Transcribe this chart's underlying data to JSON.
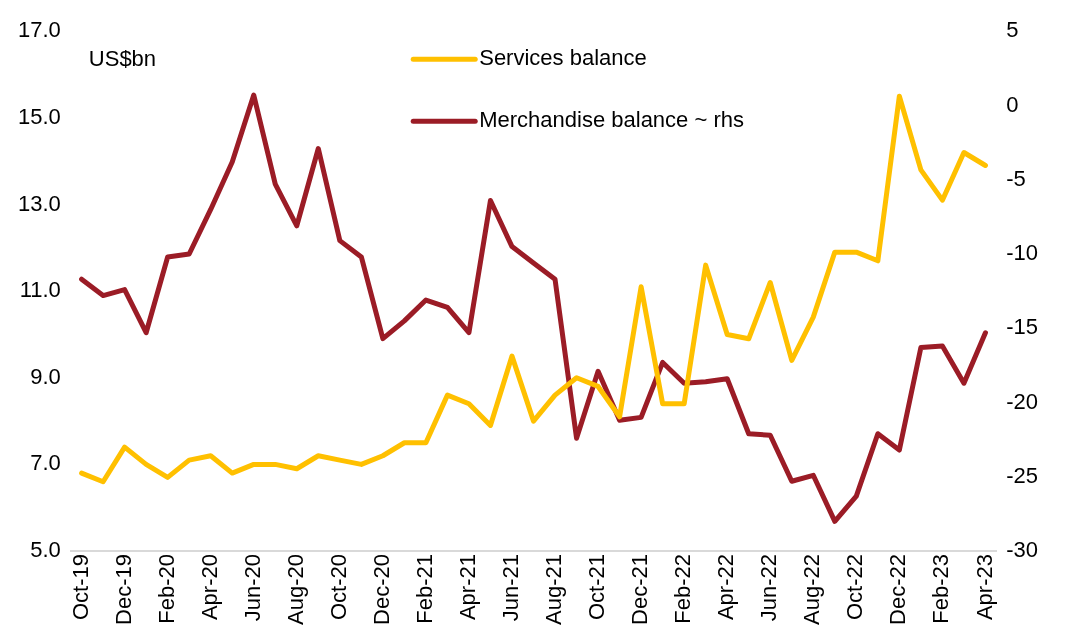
{
  "chart_data": {
    "type": "line",
    "categories": [
      "Oct-19",
      null,
      "Dec-19",
      null,
      "Feb-20",
      null,
      "Apr-20",
      null,
      "Jun-20",
      null,
      "Aug-20",
      null,
      "Oct-20",
      null,
      "Dec-20",
      null,
      "Feb-21",
      null,
      "Apr-21",
      null,
      "Jun-21",
      null,
      "Aug-21",
      null,
      "Oct-21",
      null,
      "Dec-21",
      null,
      "Feb-22",
      null,
      "Apr-22",
      null,
      "Jun-22",
      null,
      "Aug-22",
      null,
      "Oct-22",
      null,
      "Dec-22",
      null,
      "Feb-23",
      null,
      "Apr-23"
    ],
    "series": [
      {
        "name": "Services balance",
        "color": "#ffc000",
        "values": [
          6.8,
          6.6,
          7.4,
          7.0,
          6.7,
          7.1,
          7.2,
          6.8,
          7.0,
          7.0,
          6.9,
          7.2,
          7.1,
          7.0,
          7.2,
          7.5,
          7.5,
          8.6,
          8.4,
          7.9,
          9.5,
          8.0,
          8.6,
          9.0,
          8.8,
          8.1,
          11.1,
          8.4,
          8.4,
          11.6,
          10.0,
          9.9,
          11.2,
          9.4,
          10.4,
          11.9,
          11.9,
          11.7,
          15.5,
          13.8,
          13.1,
          14.2,
          13.9
        ]
      },
      {
        "name": "Merchandise balance ~ rhs",
        "color": "#9b1c26",
        "axis": "y2",
        "values": [
          -11.7,
          -12.8,
          -12.4,
          -15.3,
          -10.2,
          -10.0,
          -7.0,
          -3.8,
          0.7,
          -5.3,
          -8.1,
          -2.9,
          -9.1,
          -10.2,
          -15.7,
          -14.5,
          -13.1,
          -13.6,
          -15.3,
          -6.4,
          -9.5,
          -10.6,
          -11.7,
          -22.4,
          -17.9,
          -21.2,
          -21.0,
          -17.3,
          -18.7,
          -18.6,
          -18.4,
          -22.1,
          -22.2,
          -25.3,
          -24.9,
          -28.0,
          -26.3,
          -22.1,
          -23.2,
          -16.3,
          -16.2,
          -18.7,
          -15.3
        ]
      }
    ],
    "ylim": [
      5,
      17
    ],
    "yticks": [
      {
        "value": 5,
        "label": "5.0"
      },
      {
        "value": 7,
        "label": "7.0"
      },
      {
        "value": 9,
        "label": "9.0"
      },
      {
        "value": 11,
        "label": "11.0"
      },
      {
        "value": 13,
        "label": "13.0"
      },
      {
        "value": 15,
        "label": "15.0"
      },
      {
        "value": 17,
        "label": "17.0"
      }
    ],
    "y2lim": [
      -30,
      5
    ],
    "y2ticks": [
      -30,
      -25,
      -20,
      -15,
      -10,
      -5,
      0,
      5
    ],
    "annotations": [
      "US$bn"
    ],
    "legend": "top",
    "grid": false,
    "marker": "none",
    "line_style": "solid"
  }
}
